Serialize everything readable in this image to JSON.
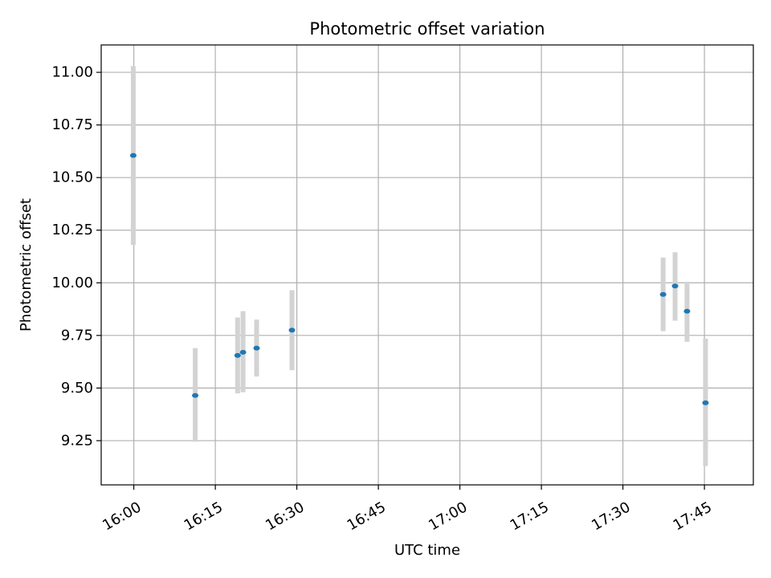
{
  "chart_data": {
    "type": "scatter",
    "title": "Photometric offset variation",
    "xlabel": "UTC time",
    "ylabel": "Photometric offset",
    "xlim": [
      "15:54",
      "17:54"
    ],
    "ylim": [
      9.04,
      11.13
    ],
    "x_ticks": [
      "16:00",
      "16:15",
      "16:30",
      "16:45",
      "17:00",
      "17:15",
      "17:30",
      "17:45"
    ],
    "y_ticks": [
      9.25,
      9.5,
      9.75,
      10.0,
      10.25,
      10.5,
      10.75,
      11.0
    ],
    "y_tick_labels": [
      "9.25",
      "9.50",
      "9.75",
      "10.00",
      "10.25",
      "10.50",
      "10.75",
      "11.00"
    ],
    "grid": true,
    "colors": {
      "point": "#1f77b4",
      "errorbar": "#d3d3d3",
      "grid": "#b0b0b0"
    },
    "series": [
      {
        "points": [
          {
            "x": "15:59.9",
            "y": 10.605,
            "ylow": 10.18,
            "yhigh": 11.03
          },
          {
            "x": "16:11.3",
            "y": 9.465,
            "ylow": 9.245,
            "yhigh": 9.69
          },
          {
            "x": "16:19.1",
            "y": 9.655,
            "ylow": 9.475,
            "yhigh": 9.835
          },
          {
            "x": "16:20.1",
            "y": 9.67,
            "ylow": 9.48,
            "yhigh": 9.865
          },
          {
            "x": "16:22.6",
            "y": 9.69,
            "ylow": 9.555,
            "yhigh": 9.825
          },
          {
            "x": "16:29.1",
            "y": 9.775,
            "ylow": 9.585,
            "yhigh": 9.965
          },
          {
            "x": "17:37.4",
            "y": 9.945,
            "ylow": 9.77,
            "yhigh": 10.12
          },
          {
            "x": "17:39.6",
            "y": 9.985,
            "ylow": 9.82,
            "yhigh": 10.145
          },
          {
            "x": "17:41.8",
            "y": 9.865,
            "ylow": 9.72,
            "yhigh": 10.005
          },
          {
            "x": "17:45.2",
            "y": 9.43,
            "ylow": 9.13,
            "yhigh": 9.735
          }
        ]
      }
    ]
  }
}
